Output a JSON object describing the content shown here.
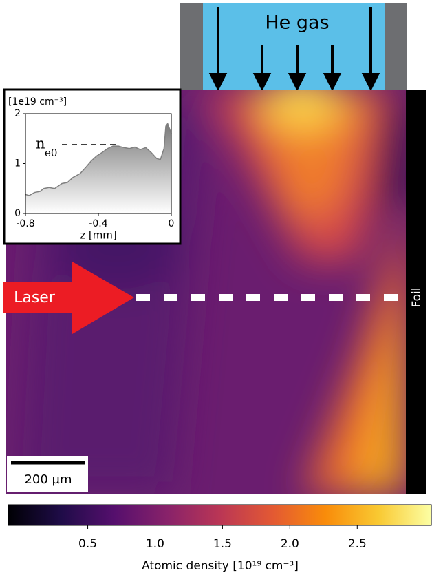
{
  "labels": {
    "gas": "He gas",
    "laser": "Laser",
    "foil": "Foil",
    "scale_bar": "200 µm"
  },
  "chart_data": [
    {
      "type": "area",
      "unit_label": "[1e19 cm⁻³]",
      "xlabel": "z [mm]",
      "annotation": {
        "main": "n",
        "sub": "e0"
      },
      "hline": {
        "y": 1.38,
        "xmin": -0.6,
        "xmax": -0.3
      },
      "x": [
        -0.8,
        -0.78,
        -0.75,
        -0.72,
        -0.7,
        -0.67,
        -0.64,
        -0.6,
        -0.57,
        -0.54,
        -0.5,
        -0.47,
        -0.44,
        -0.41,
        -0.38,
        -0.35,
        -0.32,
        -0.29,
        -0.26,
        -0.23,
        -0.2,
        -0.17,
        -0.14,
        -0.11,
        -0.08,
        -0.06,
        -0.04,
        -0.03,
        -0.02,
        0
      ],
      "values": [
        0.38,
        0.36,
        0.42,
        0.44,
        0.5,
        0.52,
        0.5,
        0.6,
        0.62,
        0.72,
        0.8,
        0.92,
        1.05,
        1.15,
        1.22,
        1.3,
        1.35,
        1.35,
        1.32,
        1.3,
        1.33,
        1.28,
        1.32,
        1.22,
        1.1,
        1.08,
        1.3,
        1.75,
        1.8,
        1.6
      ],
      "color": "#808080",
      "xlim": [
        -0.8,
        0
      ],
      "xticks": [
        -0.8,
        -0.4,
        0
      ],
      "ylim": [
        0,
        2
      ],
      "yticks": [
        0,
        1,
        2
      ]
    },
    {
      "type": "colorbar",
      "xlabel": "Atomic density [10¹⁹ cm⁻³]",
      "xlim": [
        -0.09,
        3.05
      ],
      "xticks": [
        0.5,
        1.0,
        1.5,
        2.0,
        2.5
      ],
      "colors": [
        "#000004",
        "#1f0c48",
        "#550f6d",
        "#88226a",
        "#ba3655",
        "#e35933",
        "#f98c0a",
        "#f9c932",
        "#fcffa4"
      ]
    }
  ]
}
